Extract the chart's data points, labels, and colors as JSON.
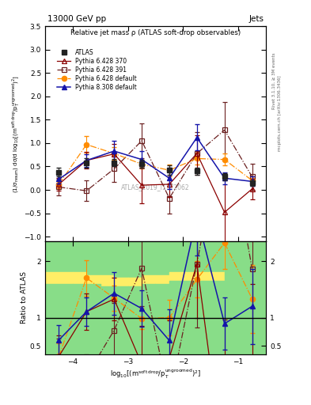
{
  "title_top": "13000 GeV pp",
  "title_right": "Jets",
  "plot_title": "Relative jet mass ρ (ATLAS soft-drop observables)",
  "watermark": "ATLAS_2019_I1772062",
  "right_label_top": "Rivet 3.1.10, ≥ 3M events",
  "right_label_bot": "mcplots.cern.ch [arXiv:1306.3436]",
  "xlabel": "log$_{10}$[(m$^{\\rm soft\\,drop}$/p$_{\\rm T}^{\\rm ungroomed}$)$^2$]",
  "ylabel": "(1/σ$_{\\rm resum}$) dσ/d log$_{10}$[(m$^{\\rm soft\\,drop}$/p$_T^{\\rm ungroomed}$)$^2$]",
  "ylabel_ratio": "Ratio to ATLAS",
  "xmin": -4.5,
  "xmax": -0.5,
  "ymin": -1.1,
  "ymax": 3.5,
  "ratio_ymin": 0.35,
  "ratio_ymax": 2.35,
  "x_ticks": [
    -4,
    -3,
    -2,
    -1
  ],
  "y_ticks": [
    -1.0,
    -0.5,
    0.0,
    0.5,
    1.0,
    1.5,
    2.0,
    2.5,
    3.0,
    3.5
  ],
  "atlas_x": [
    -4.25,
    -3.75,
    -3.25,
    -2.75,
    -2.25,
    -1.75,
    -1.25,
    -0.75
  ],
  "atlas_y": [
    0.38,
    0.57,
    0.58,
    0.56,
    0.42,
    0.4,
    0.28,
    0.15
  ],
  "atlas_yerr": [
    0.1,
    0.1,
    0.08,
    0.08,
    0.1,
    0.08,
    0.07,
    0.06
  ],
  "py6_370_x": [
    -4.25,
    -3.75,
    -3.25,
    -2.75,
    -2.25,
    -1.75,
    -1.25,
    -0.75
  ],
  "py6_370_y": [
    0.12,
    0.63,
    0.77,
    0.1,
    0.12,
    0.78,
    -0.48,
    0.02
  ],
  "py6_370_yerr": [
    0.14,
    0.18,
    0.22,
    0.38,
    0.28,
    0.38,
    0.75,
    0.22
  ],
  "py6_391_x": [
    -4.25,
    -3.75,
    -3.25,
    -2.75,
    -2.25,
    -1.75,
    -1.25,
    -0.75
  ],
  "py6_391_y": [
    0.06,
    -0.02,
    0.45,
    1.05,
    -0.18,
    0.78,
    1.28,
    0.28
  ],
  "py6_391_yerr": [
    0.18,
    0.22,
    0.28,
    0.38,
    0.32,
    0.45,
    0.6,
    0.28
  ],
  "py6_def_x": [
    -4.25,
    -3.75,
    -3.25,
    -2.75,
    -2.25,
    -1.75,
    -1.25,
    -0.75
  ],
  "py6_def_y": [
    0.12,
    0.97,
    0.78,
    0.55,
    0.42,
    0.67,
    0.65,
    0.2
  ],
  "py6_def_yerr": [
    0.09,
    0.18,
    0.13,
    0.1,
    0.13,
    0.13,
    0.13,
    0.09
  ],
  "py8_def_x": [
    -4.25,
    -3.75,
    -3.25,
    -2.75,
    -2.25,
    -1.75,
    -1.25,
    -0.75
  ],
  "py8_def_y": [
    0.23,
    0.63,
    0.83,
    0.65,
    0.25,
    1.12,
    0.25,
    0.18
  ],
  "py8_def_yerr": [
    0.1,
    0.14,
    0.22,
    0.18,
    0.23,
    0.28,
    0.13,
    0.1
  ],
  "atlas_color": "#222222",
  "py6_370_color": "#8B0000",
  "py6_391_color": "#6B2020",
  "py6_def_color": "#FF8C00",
  "py8_def_color": "#1414AA",
  "green_color": "#88DD88",
  "yellow_color": "#FFEE66",
  "green_band_edges": [
    -4.5,
    -4.0,
    -3.75,
    -3.5,
    -3.25,
    -3.0,
    -2.75,
    -2.5,
    -2.25,
    -2.0,
    -1.75,
    -1.5,
    -1.25,
    -1.0,
    -0.75,
    -0.5
  ],
  "green_top": [
    1.6,
    1.6,
    1.6,
    1.55,
    1.55,
    1.55,
    1.6,
    1.6,
    1.65,
    1.65,
    1.65,
    1.65,
    2.35,
    2.35,
    2.35,
    2.35
  ],
  "yellow_top": [
    1.8,
    1.8,
    1.75,
    1.75,
    1.7,
    1.7,
    1.75,
    1.75,
    1.8,
    1.8,
    1.8,
    1.8,
    2.35,
    2.35,
    2.35,
    2.35
  ],
  "band_bot": [
    0.35,
    0.35,
    0.35,
    0.35,
    0.35,
    0.35,
    0.35,
    0.35,
    0.35,
    0.35,
    0.35,
    0.35,
    0.35,
    0.35,
    0.35,
    0.35
  ]
}
